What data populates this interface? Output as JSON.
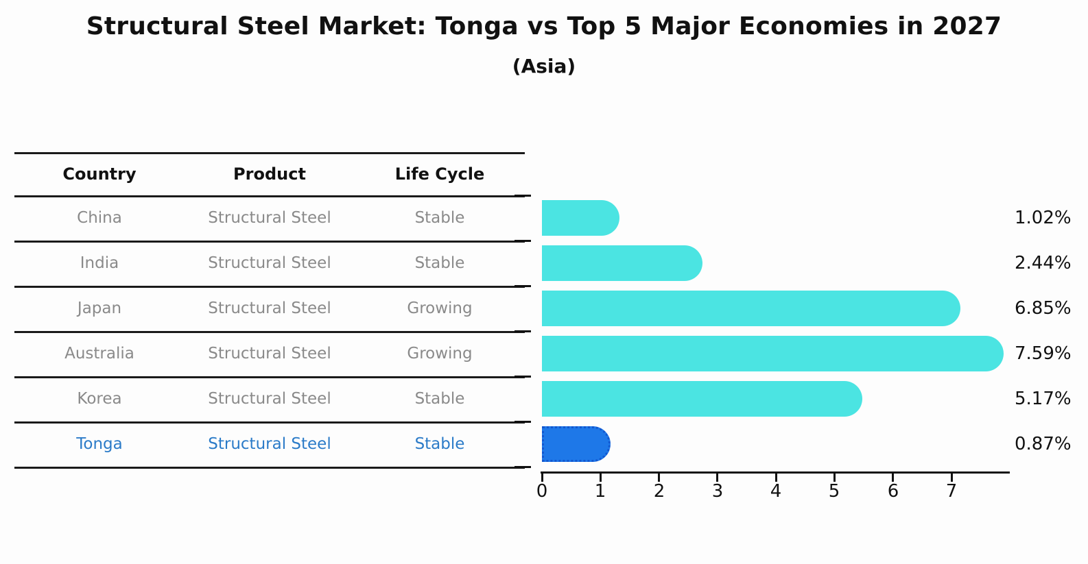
{
  "title": "Structural Steel Market: Tonga vs Top 5 Major Economies in 2027",
  "subtitle": "(Asia)",
  "table": {
    "headers": [
      "Country",
      "Product",
      "Life Cycle"
    ],
    "rows": [
      {
        "country": "China",
        "product": "Structural Steel",
        "life_cycle": "Stable",
        "highlighted": false
      },
      {
        "country": "India",
        "product": "Structural Steel",
        "life_cycle": "Stable",
        "highlighted": false
      },
      {
        "country": "Japan",
        "product": "Structural Steel",
        "life_cycle": "Growing",
        "highlighted": false
      },
      {
        "country": "Australia",
        "product": "Structural Steel",
        "life_cycle": "Growing",
        "highlighted": false
      },
      {
        "country": "Korea",
        "product": "Structural Steel",
        "life_cycle": "Stable",
        "highlighted": false
      },
      {
        "country": "Tonga",
        "product": "Structural Steel",
        "life_cycle": "Stable",
        "highlighted": true
      }
    ]
  },
  "chart_data": {
    "type": "bar",
    "orientation": "horizontal",
    "title": "Structural Steel Market: Tonga vs Top 5 Major Economies in 2027",
    "subtitle": "(Asia)",
    "categories": [
      "China",
      "India",
      "Japan",
      "Australia",
      "Korea",
      "Tonga"
    ],
    "values": [
      1.02,
      2.44,
      6.85,
      7.59,
      5.17,
      0.87
    ],
    "value_labels": [
      "1.02%",
      "2.44%",
      "6.85%",
      "7.59%",
      "5.17%",
      "0.87%"
    ],
    "unit": "percent",
    "xlim": [
      0,
      7.87
    ],
    "x_ticks": [
      "0",
      "1",
      "2",
      "3",
      "4",
      "5",
      "6",
      "7"
    ],
    "grid": false,
    "bar_color": "#4be4e2",
    "highlight_color": "#1e78e8",
    "highlight_border_color": "#1257d0",
    "highlight_index": 5
  },
  "colors": {
    "background": "#fdfdfd",
    "table_line": "#1a1a1a",
    "header_text": "#111111",
    "row_text": "#8a8a8a",
    "highlight_text": "#2b7bc8",
    "axis": "#111111"
  }
}
